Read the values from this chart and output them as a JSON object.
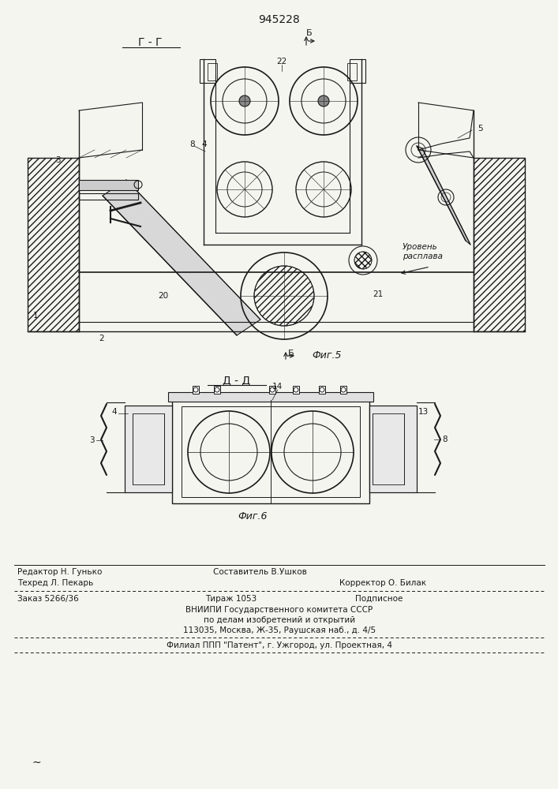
{
  "patent_number": "945228",
  "bg_color": "#f5f5f0",
  "line_color": "#1a1a1a",
  "fig5_label": "Фиг.5",
  "fig6_label": "Фиг.6",
  "section_gg": "Г - Г",
  "section_dd": "Д - Д",
  "section_b": "Б",
  "footer": {
    "redaktor": "Редактор Н. Гунько",
    "sostavitel": "Составитель В.Ушков",
    "tehred": "Техред Л. Пекарь",
    "korrektor": "Корректор О. Билак",
    "zakaz": "Заказ 5266/36",
    "tirazh": "Тираж 1053",
    "podpisnoe": "Подписное",
    "vniip1": "ВНИИПИ Государственного комитета СССР",
    "vniip2": "по делам изобретений и открытий",
    "vniip3": "113035, Москва, Ж-35, Раушская наб., д. 4/5",
    "filial": "Филиал ППП \"Патент\", г. Ужгород, ул. Проектная, 4"
  }
}
